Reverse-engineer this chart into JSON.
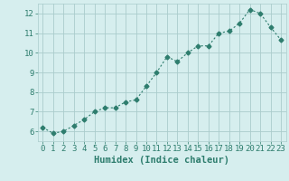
{
  "x": [
    0,
    1,
    2,
    3,
    4,
    5,
    6,
    7,
    8,
    9,
    10,
    11,
    12,
    13,
    14,
    15,
    16,
    17,
    18,
    19,
    20,
    21,
    22,
    23
  ],
  "y": [
    6.2,
    5.9,
    6.0,
    6.3,
    6.6,
    7.0,
    7.2,
    7.2,
    7.5,
    7.6,
    8.3,
    9.0,
    9.8,
    9.55,
    10.0,
    10.35,
    10.35,
    11.0,
    11.1,
    11.5,
    12.2,
    12.0,
    11.3,
    10.65
  ],
  "line_color": "#2e7d6e",
  "marker": "D",
  "marker_size": 2.5,
  "bg_color": "#d6eeee",
  "grid_color": "#aacccc",
  "xlabel": "Humidex (Indice chaleur)",
  "xlabel_fontsize": 7.5,
  "xlim": [
    -0.5,
    23.5
  ],
  "ylim": [
    5.5,
    12.5
  ],
  "yticks": [
    6,
    7,
    8,
    9,
    10,
    11,
    12
  ],
  "xticks": [
    0,
    1,
    2,
    3,
    4,
    5,
    6,
    7,
    8,
    9,
    10,
    11,
    12,
    13,
    14,
    15,
    16,
    17,
    18,
    19,
    20,
    21,
    22,
    23
  ],
  "tick_fontsize": 6.5
}
